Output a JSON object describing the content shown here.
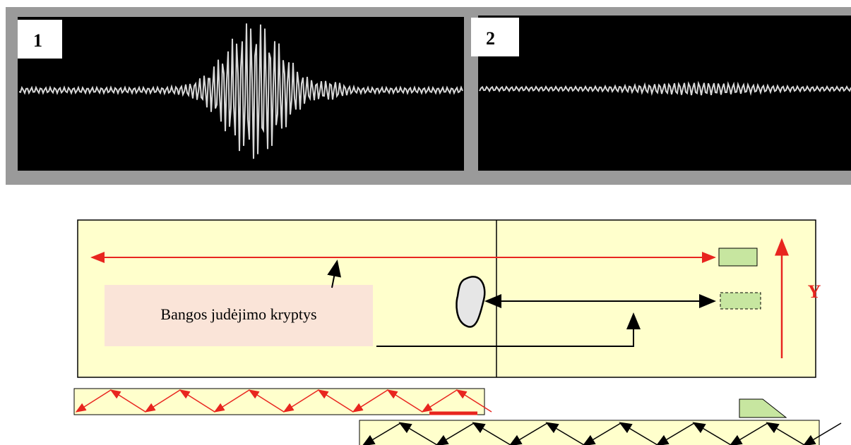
{
  "screens": [
    {
      "label": "1"
    },
    {
      "label": "2"
    }
  ],
  "diagram": {
    "annotation": "Bangos judėjimo kryptys",
    "axis_label": "Y"
  }
}
